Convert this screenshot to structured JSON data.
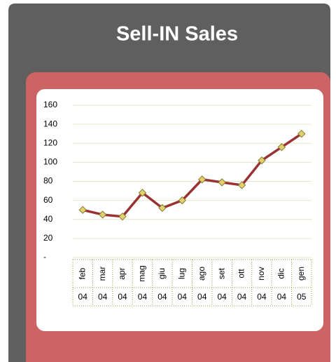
{
  "chart_data": {
    "type": "line",
    "title": "Sell-IN Sales",
    "categories": [
      "feb",
      "mar",
      "apr",
      "mag",
      "giu",
      "lug",
      "ago",
      "set",
      "ott",
      "nov",
      "dic",
      "gen"
    ],
    "category_years": [
      "04",
      "04",
      "04",
      "04",
      "04",
      "04",
      "04",
      "04",
      "04",
      "04",
      "04",
      "05"
    ],
    "values": [
      50,
      45,
      43,
      68,
      52,
      60,
      82,
      79,
      76,
      102,
      116,
      130
    ],
    "color": "#993333",
    "marker_color": "#e0d070",
    "ylim": [
      0,
      160
    ],
    "yticks": [
      {
        "value": 0,
        "label": "-"
      },
      20,
      40,
      60,
      80,
      100,
      120,
      140,
      160
    ],
    "grid": true
  }
}
